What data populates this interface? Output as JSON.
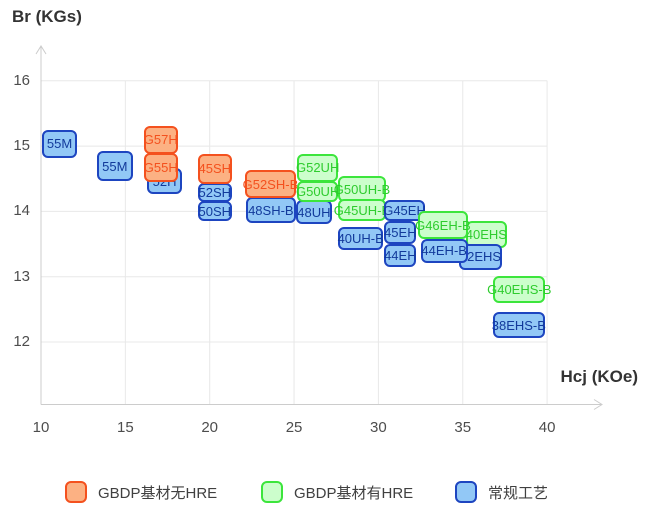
{
  "chart": {
    "y_axis_title": "Br (KGs)",
    "x_axis_title": "Hcj (KOe)"
  },
  "chart_data": {
    "type": "scatter",
    "mark": "labeled-box",
    "title": "",
    "xlabel": "Hcj (KOe)",
    "ylabel": "Br (KGs)",
    "xlim": [
      10,
      43
    ],
    "ylim": [
      11,
      16.6
    ],
    "x_ticks": [
      10,
      15,
      20,
      25,
      30,
      35,
      40
    ],
    "y_ticks": [
      12,
      13,
      14,
      15,
      16
    ],
    "grid": true,
    "legend_position": "bottom",
    "series": [
      {
        "id": "gbdp-no-hre",
        "name": "GBDP基材无HRE",
        "fill": "#FCB183",
        "border": "#F4511E",
        "text": "#F4511E"
      },
      {
        "id": "gbdp-hre",
        "name": "GBDP基材有HRE",
        "fill": "#CCFECC",
        "border": "#3CE53C",
        "text": "#2ECC2E"
      },
      {
        "id": "conventional",
        "name": "常规工艺",
        "fill": "#92C8F6",
        "border": "#1D45C0",
        "text": "#123A9B"
      }
    ],
    "points": [
      {
        "label": "55M",
        "series": "conventional",
        "x": [
          10.05,
          12.15
        ],
        "y": [
          14.82,
          15.25
        ],
        "z": 1
      },
      {
        "label": "55M",
        "series": "conventional",
        "x": [
          13.3,
          15.45
        ],
        "y": [
          14.46,
          14.93
        ],
        "z": 1
      },
      {
        "label": "G57H",
        "series": "gbdp-no-hre",
        "x": [
          16.1,
          18.1
        ],
        "y": [
          14.88,
          15.31
        ],
        "z": 2
      },
      {
        "label": "G55H",
        "series": "gbdp-no-hre",
        "x": [
          16.1,
          18.1
        ],
        "y": [
          14.45,
          14.89
        ],
        "z": 3
      },
      {
        "label": "52H",
        "series": "conventional",
        "x": [
          16.3,
          18.35
        ],
        "y": [
          14.27,
          14.66
        ],
        "z": 1
      },
      {
        "label": "45SH",
        "series": "gbdp-no-hre",
        "x": [
          19.3,
          21.3
        ],
        "y": [
          14.42,
          14.88
        ],
        "z": 2
      },
      {
        "label": "52SH",
        "series": "conventional",
        "x": [
          19.3,
          21.3
        ],
        "y": [
          14.14,
          14.43
        ],
        "z": 1
      },
      {
        "label": "50SH",
        "series": "conventional",
        "x": [
          19.3,
          21.3
        ],
        "y": [
          13.85,
          14.16
        ],
        "z": 1
      },
      {
        "label": "G52SH-B",
        "series": "gbdp-no-hre",
        "x": [
          22.1,
          25.1
        ],
        "y": [
          14.2,
          14.63
        ],
        "z": 2
      },
      {
        "label": "48SH-B",
        "series": "conventional",
        "x": [
          22.15,
          25.1
        ],
        "y": [
          13.82,
          14.22
        ],
        "z": 1
      },
      {
        "label": "G52UH",
        "series": "gbdp-hre",
        "x": [
          25.2,
          27.6
        ],
        "y": [
          14.45,
          14.88
        ],
        "z": 2
      },
      {
        "label": "G50UH",
        "series": "gbdp-hre",
        "x": [
          25.2,
          27.6
        ],
        "y": [
          14.14,
          14.46
        ],
        "z": 2
      },
      {
        "label": "48UH",
        "series": "conventional",
        "x": [
          25.1,
          27.25
        ],
        "y": [
          13.81,
          14.17
        ],
        "z": 1
      },
      {
        "label": "G50UH-B",
        "series": "gbdp-hre",
        "x": [
          27.6,
          30.45
        ],
        "y": [
          14.14,
          14.54
        ],
        "z": 2
      },
      {
        "label": "G45UH-B",
        "series": "gbdp-hre",
        "x": [
          27.6,
          30.45
        ],
        "y": [
          13.85,
          14.19
        ],
        "z": 2
      },
      {
        "label": "40UH-B",
        "series": "conventional",
        "x": [
          27.6,
          30.3
        ],
        "y": [
          13.41,
          13.76
        ],
        "z": 1
      },
      {
        "label": "G45EH",
        "series": "conventional",
        "x": [
          30.35,
          32.75
        ],
        "y": [
          13.85,
          14.17
        ],
        "z": 3
      },
      {
        "label": "45EH",
        "series": "conventional",
        "x": [
          30.35,
          32.25
        ],
        "y": [
          13.5,
          13.85
        ],
        "z": 3
      },
      {
        "label": "44EH",
        "series": "conventional",
        "x": [
          30.35,
          32.25
        ],
        "y": [
          13.15,
          13.5
        ],
        "z": 3
      },
      {
        "label": "G46EH-B",
        "series": "gbdp-hre",
        "x": [
          32.35,
          35.3
        ],
        "y": [
          13.58,
          14.0
        ],
        "z": 6
      },
      {
        "label": "44EH-B",
        "series": "conventional",
        "x": [
          32.5,
          35.3
        ],
        "y": [
          13.21,
          13.58
        ],
        "z": 5
      },
      {
        "label": "40EHS",
        "series": "gbdp-hre",
        "x": [
          35.2,
          37.6
        ],
        "y": [
          13.44,
          13.85
        ],
        "z": 3
      },
      {
        "label": "42EHS",
        "series": "conventional",
        "x": [
          34.8,
          37.3
        ],
        "y": [
          13.11,
          13.5
        ],
        "z": 4
      },
      {
        "label": "G40EHS-B",
        "series": "gbdp-hre",
        "x": [
          36.8,
          39.9
        ],
        "y": [
          12.59,
          13.01
        ],
        "z": 1
      },
      {
        "label": "38EHS-B",
        "series": "conventional",
        "x": [
          36.8,
          39.85
        ],
        "y": [
          12.06,
          12.46
        ],
        "z": 1
      }
    ]
  },
  "legend": {
    "items": [
      {
        "label": "GBDP基材无HRE",
        "series": "gbdp-no-hre"
      },
      {
        "label": "GBDP基材有HRE",
        "series": "gbdp-hre"
      },
      {
        "label": "常规工艺",
        "series": "conventional"
      }
    ]
  }
}
